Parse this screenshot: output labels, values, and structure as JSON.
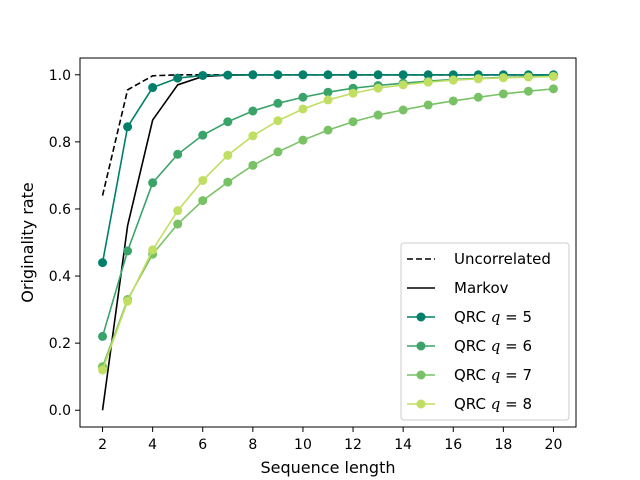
{
  "chart_data": {
    "type": "line",
    "title": "",
    "xlabel": "Sequence length",
    "ylabel": "Originality rate",
    "xlim": [
      1.1,
      20.9
    ],
    "ylim": [
      -0.05,
      1.05
    ],
    "xticks": [
      2,
      4,
      6,
      8,
      10,
      12,
      14,
      16,
      18,
      20
    ],
    "yticks": [
      0.0,
      0.2,
      0.4,
      0.6,
      0.8,
      1.0
    ],
    "xtick_labels": [
      "2",
      "4",
      "6",
      "8",
      "10",
      "12",
      "14",
      "16",
      "18",
      "20"
    ],
    "ytick_labels": [
      "0.0",
      "0.2",
      "0.4",
      "0.6",
      "0.8",
      "1.0"
    ],
    "grid": false,
    "legend_position": "lower-right",
    "series": [
      {
        "name": "Uncorrelated",
        "style": "dashed",
        "marker": false,
        "color": "#000000",
        "x": [
          2,
          3,
          4,
          5,
          6,
          7,
          8,
          9,
          10,
          11,
          12,
          13,
          14,
          15,
          16,
          17,
          18,
          19,
          20
        ],
        "y": [
          0.64,
          0.955,
          0.997,
          1.0,
          1.0,
          1.0,
          1.0,
          1.0,
          1.0,
          1.0,
          1.0,
          1.0,
          1.0,
          1.0,
          1.0,
          1.0,
          1.0,
          1.0,
          1.0
        ]
      },
      {
        "name": "Markov",
        "style": "solid",
        "marker": false,
        "color": "#000000",
        "x": [
          2,
          3,
          4,
          5,
          6,
          7,
          8,
          9,
          10,
          11,
          12,
          13,
          14,
          15,
          16,
          17,
          18,
          19,
          20
        ],
        "y": [
          0.0,
          0.55,
          0.865,
          0.97,
          0.995,
          0.999,
          1.0,
          1.0,
          1.0,
          1.0,
          1.0,
          1.0,
          1.0,
          1.0,
          1.0,
          1.0,
          1.0,
          1.0,
          1.0
        ]
      },
      {
        "name": "QRC q = 5",
        "style": "solid",
        "marker": true,
        "color": "#00806a",
        "x": [
          2,
          3,
          4,
          5,
          6,
          7,
          8,
          9,
          10,
          11,
          12,
          13,
          14,
          15,
          16,
          17,
          18,
          19,
          20
        ],
        "y": [
          0.44,
          0.845,
          0.962,
          0.99,
          0.998,
          0.999,
          1.0,
          1.0,
          1.0,
          1.0,
          1.0,
          1.0,
          1.0,
          1.0,
          1.0,
          1.0,
          1.0,
          1.0,
          1.0
        ]
      },
      {
        "name": "QRC q = 6",
        "style": "solid",
        "marker": true,
        "color": "#3aa36a",
        "x": [
          2,
          3,
          4,
          5,
          6,
          7,
          8,
          9,
          10,
          11,
          12,
          13,
          14,
          15,
          16,
          17,
          18,
          19,
          20
        ],
        "y": [
          0.22,
          0.475,
          0.678,
          0.763,
          0.82,
          0.86,
          0.892,
          0.915,
          0.933,
          0.948,
          0.96,
          0.968,
          0.975,
          0.981,
          0.986,
          0.989,
          0.992,
          0.994,
          0.996
        ]
      },
      {
        "name": "QRC q = 7",
        "style": "solid",
        "marker": true,
        "color": "#78c265",
        "x": [
          2,
          3,
          4,
          5,
          6,
          7,
          8,
          9,
          10,
          11,
          12,
          13,
          14,
          15,
          16,
          17,
          18,
          19,
          20
        ],
        "y": [
          0.13,
          0.33,
          0.465,
          0.555,
          0.625,
          0.68,
          0.73,
          0.77,
          0.805,
          0.835,
          0.86,
          0.88,
          0.895,
          0.91,
          0.922,
          0.933,
          0.943,
          0.951,
          0.958
        ]
      },
      {
        "name": "QRC q = 8",
        "style": "solid",
        "marker": true,
        "color": "#c0df62",
        "x": [
          2,
          3,
          4,
          5,
          6,
          7,
          8,
          9,
          10,
          11,
          12,
          13,
          14,
          15,
          16,
          17,
          18,
          19,
          20
        ],
        "y": [
          0.12,
          0.325,
          0.478,
          0.595,
          0.685,
          0.76,
          0.818,
          0.863,
          0.898,
          0.925,
          0.945,
          0.96,
          0.97,
          0.978,
          0.984,
          0.988,
          0.991,
          0.993,
          0.995
        ]
      }
    ]
  }
}
